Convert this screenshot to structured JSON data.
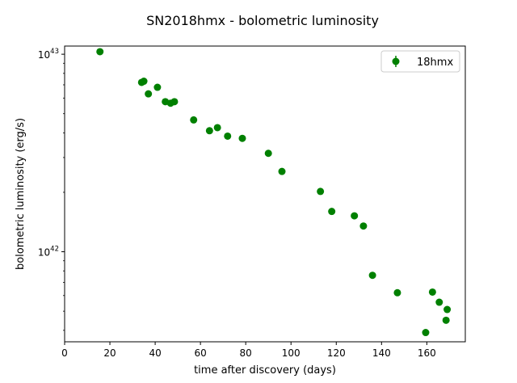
{
  "chart_data": {
    "type": "scatter",
    "title": "SN2018hmx - bolometric luminosity",
    "xlabel": "time after discovery (days)",
    "ylabel": "bolometric luminosity (erg/s)",
    "xlim": [
      0,
      177
    ],
    "ylim": [
      3.5e+41,
      1.1e+43
    ],
    "yscale": "log",
    "grid": false,
    "legend_position": "top-right",
    "x_ticks": [
      0,
      20,
      40,
      60,
      80,
      100,
      120,
      140,
      160
    ],
    "x_tick_labels": [
      "0",
      "20",
      "40",
      "60",
      "80",
      "100",
      "120",
      "140",
      "160"
    ],
    "y_ticks": [
      1e+42,
      1e+43
    ],
    "y_tick_bases": [
      "10",
      "10"
    ],
    "y_tick_exponents": [
      "42",
      "43"
    ],
    "series": [
      {
        "name": "18hmx",
        "color": "#008000",
        "marker": "circle",
        "points": [
          [
            15.6,
            1.03e+43
          ],
          [
            34.0,
            7.2e+42
          ],
          [
            35.0,
            7.3e+42
          ],
          [
            37.0,
            6.3e+42
          ],
          [
            41.0,
            6.8e+42
          ],
          [
            44.5,
            5.75e+42
          ],
          [
            46.8,
            5.65e+42
          ],
          [
            48.5,
            5.75e+42
          ],
          [
            57.0,
            4.65e+42
          ],
          [
            64.0,
            4.1e+42
          ],
          [
            67.5,
            4.25e+42
          ],
          [
            72.0,
            3.85e+42
          ],
          [
            78.5,
            3.75e+42
          ],
          [
            90.0,
            3.15e+42
          ],
          [
            96.0,
            2.55e+42
          ],
          [
            113.0,
            2.02e+42
          ],
          [
            118.0,
            1.6e+42
          ],
          [
            128.0,
            1.52e+42
          ],
          [
            132.0,
            1.35e+42
          ],
          [
            136.0,
            7.6e+41
          ],
          [
            147.0,
            6.2e+41
          ],
          [
            159.5,
            3.9e+41
          ],
          [
            162.5,
            6.25e+41
          ],
          [
            165.5,
            5.55e+41
          ],
          [
            168.5,
            4.5e+41
          ],
          [
            169.0,
            5.1e+41
          ]
        ]
      }
    ]
  }
}
